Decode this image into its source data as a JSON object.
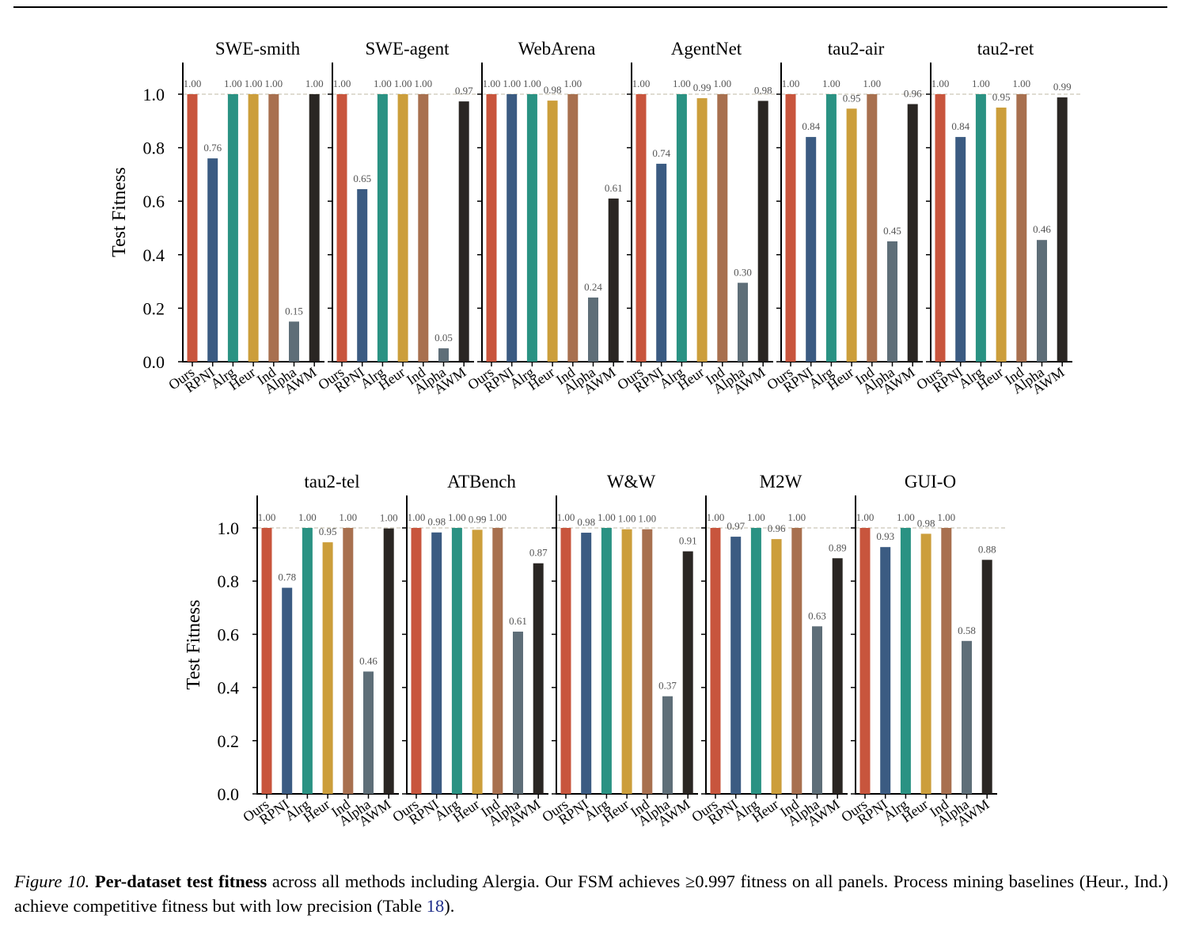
{
  "figure": {
    "ylabel": "Test Fitness",
    "yticks": [
      "0.0",
      "0.2",
      "0.4",
      "0.6",
      "0.8",
      "1.0"
    ],
    "method_colors": [
      "#C8553D",
      "#3B5B82",
      "#2A9283",
      "#CC9E3B",
      "#A8704F",
      "#5E6E78",
      "#2A2623"
    ]
  },
  "caption": {
    "label": "Figure 10.",
    "bold": "Per-dataset test fitness",
    "text": " across all methods including Alergia. Our FSM achieves ≥0.997 fitness on all panels. Process mining baselines (Heur., Ind.) achieve competitive fitness but with low precision (Table ",
    "ref": "18",
    "end": ")."
  },
  "chart_data": [
    {
      "type": "bar",
      "title": "SWE-smith",
      "ylabel": "Test Fitness",
      "ylim": [
        0,
        1.1
      ],
      "categories": [
        "Ours",
        "RPNI",
        "Alrg",
        "Heur",
        "Ind",
        "Alpha",
        "AWM"
      ],
      "values": [
        1.0,
        0.76,
        1.0,
        1.0,
        1.0,
        0.15,
        1.0
      ],
      "labels": [
        "1.00",
        "0.76",
        "1.00",
        "1.00",
        "1.00",
        "0.15",
        "1.00"
      ]
    },
    {
      "type": "bar",
      "title": "SWE-agent",
      "ylim": [
        0,
        1.1
      ],
      "categories": [
        "Ours",
        "RPNI",
        "Alrg",
        "Heur",
        "Ind",
        "Alpha",
        "AWM"
      ],
      "values": [
        1.0,
        0.645,
        1.0,
        1.0,
        1.0,
        0.05,
        0.973
      ],
      "labels": [
        "1.00",
        "0.65",
        "1.00",
        "1.00",
        "1.00",
        "0.05",
        "0.97"
      ]
    },
    {
      "type": "bar",
      "title": "WebArena",
      "ylim": [
        0,
        1.1
      ],
      "categories": [
        "Ours",
        "RPNI",
        "Alrg",
        "Heur",
        "Ind",
        "Alpha",
        "AWM"
      ],
      "values": [
        1.0,
        1.0,
        1.0,
        0.976,
        1.0,
        0.24,
        0.61
      ],
      "labels": [
        "1.00",
        "1.00",
        "1.00",
        "0.98",
        "1.00",
        "0.24",
        "0.61"
      ]
    },
    {
      "type": "bar",
      "title": "AgentNet",
      "ylim": [
        0,
        1.1
      ],
      "categories": [
        "Ours",
        "RPNI",
        "Alrg",
        "Heur",
        "Ind",
        "Alpha",
        "AWM"
      ],
      "values": [
        1.0,
        0.74,
        1.0,
        0.985,
        1.0,
        0.295,
        0.975
      ],
      "labels": [
        "1.00",
        "0.74",
        "1.00",
        "0.99",
        "1.00",
        "0.30",
        "0.98"
      ]
    },
    {
      "type": "bar",
      "title": "tau2-air",
      "ylim": [
        0,
        1.1
      ],
      "categories": [
        "Ours",
        "RPNI",
        "Alrg",
        "Heur",
        "Ind",
        "Alpha",
        "AWM"
      ],
      "values": [
        1.0,
        0.84,
        1.0,
        0.946,
        1.0,
        0.45,
        0.963
      ],
      "labels": [
        "1.00",
        "0.84",
        "1.00",
        "0.95",
        "1.00",
        "0.45",
        "0.96"
      ]
    },
    {
      "type": "bar",
      "title": "tau2-ret",
      "ylim": [
        0,
        1.1
      ],
      "categories": [
        "Ours",
        "RPNI",
        "Alrg",
        "Heur",
        "Ind",
        "Alpha",
        "AWM"
      ],
      "values": [
        1.0,
        0.84,
        1.0,
        0.95,
        1.0,
        0.455,
        0.988
      ],
      "labels": [
        "1.00",
        "0.84",
        "1.00",
        "0.95",
        "1.00",
        "0.46",
        "0.99"
      ]
    },
    {
      "type": "bar",
      "title": "tau2-tel",
      "ylabel": "Test Fitness",
      "ylim": [
        0,
        1.1
      ],
      "categories": [
        "Ours",
        "RPNI",
        "Alrg",
        "Heur",
        "Ind",
        "Alpha",
        "AWM"
      ],
      "values": [
        1.0,
        0.775,
        1.0,
        0.946,
        1.0,
        0.46,
        0.998
      ],
      "labels": [
        "1.00",
        "0.78",
        "1.00",
        "0.95",
        "1.00",
        "0.46",
        "1.00"
      ]
    },
    {
      "type": "bar",
      "title": "ATBench",
      "ylim": [
        0,
        1.1
      ],
      "categories": [
        "Ours",
        "RPNI",
        "Alrg",
        "Heur",
        "Ind",
        "Alpha",
        "AWM"
      ],
      "values": [
        1.0,
        0.983,
        1.0,
        0.993,
        1.0,
        0.61,
        0.867
      ],
      "labels": [
        "1.00",
        "0.98",
        "1.00",
        "0.99",
        "1.00",
        "0.61",
        "0.87"
      ]
    },
    {
      "type": "bar",
      "title": "W&W",
      "ylim": [
        0,
        1.1
      ],
      "categories": [
        "Ours",
        "RPNI",
        "Alrg",
        "Heur",
        "Ind",
        "Alpha",
        "AWM"
      ],
      "values": [
        1.0,
        0.982,
        1.0,
        0.995,
        0.995,
        0.367,
        0.912
      ],
      "labels": [
        "1.00",
        "0.98",
        "1.00",
        "1.00",
        "1.00",
        "0.37",
        "0.91"
      ]
    },
    {
      "type": "bar",
      "title": "M2W",
      "ylim": [
        0,
        1.1
      ],
      "categories": [
        "Ours",
        "RPNI",
        "Alrg",
        "Heur",
        "Ind",
        "Alpha",
        "AWM"
      ],
      "values": [
        1.0,
        0.967,
        1.0,
        0.958,
        1.0,
        0.63,
        0.886
      ],
      "labels": [
        "1.00",
        "0.97",
        "1.00",
        "0.96",
        "1.00",
        "0.63",
        "0.89"
      ]
    },
    {
      "type": "bar",
      "title": "GUI-O",
      "ylim": [
        0,
        1.1
      ],
      "categories": [
        "Ours",
        "RPNI",
        "Alrg",
        "Heur",
        "Ind",
        "Alpha",
        "AWM"
      ],
      "values": [
        1.0,
        0.928,
        1.0,
        0.978,
        1.0,
        0.575,
        0.88
      ],
      "labels": [
        "1.00",
        "0.93",
        "1.00",
        "0.98",
        "1.00",
        "0.58",
        "0.88"
      ]
    }
  ]
}
